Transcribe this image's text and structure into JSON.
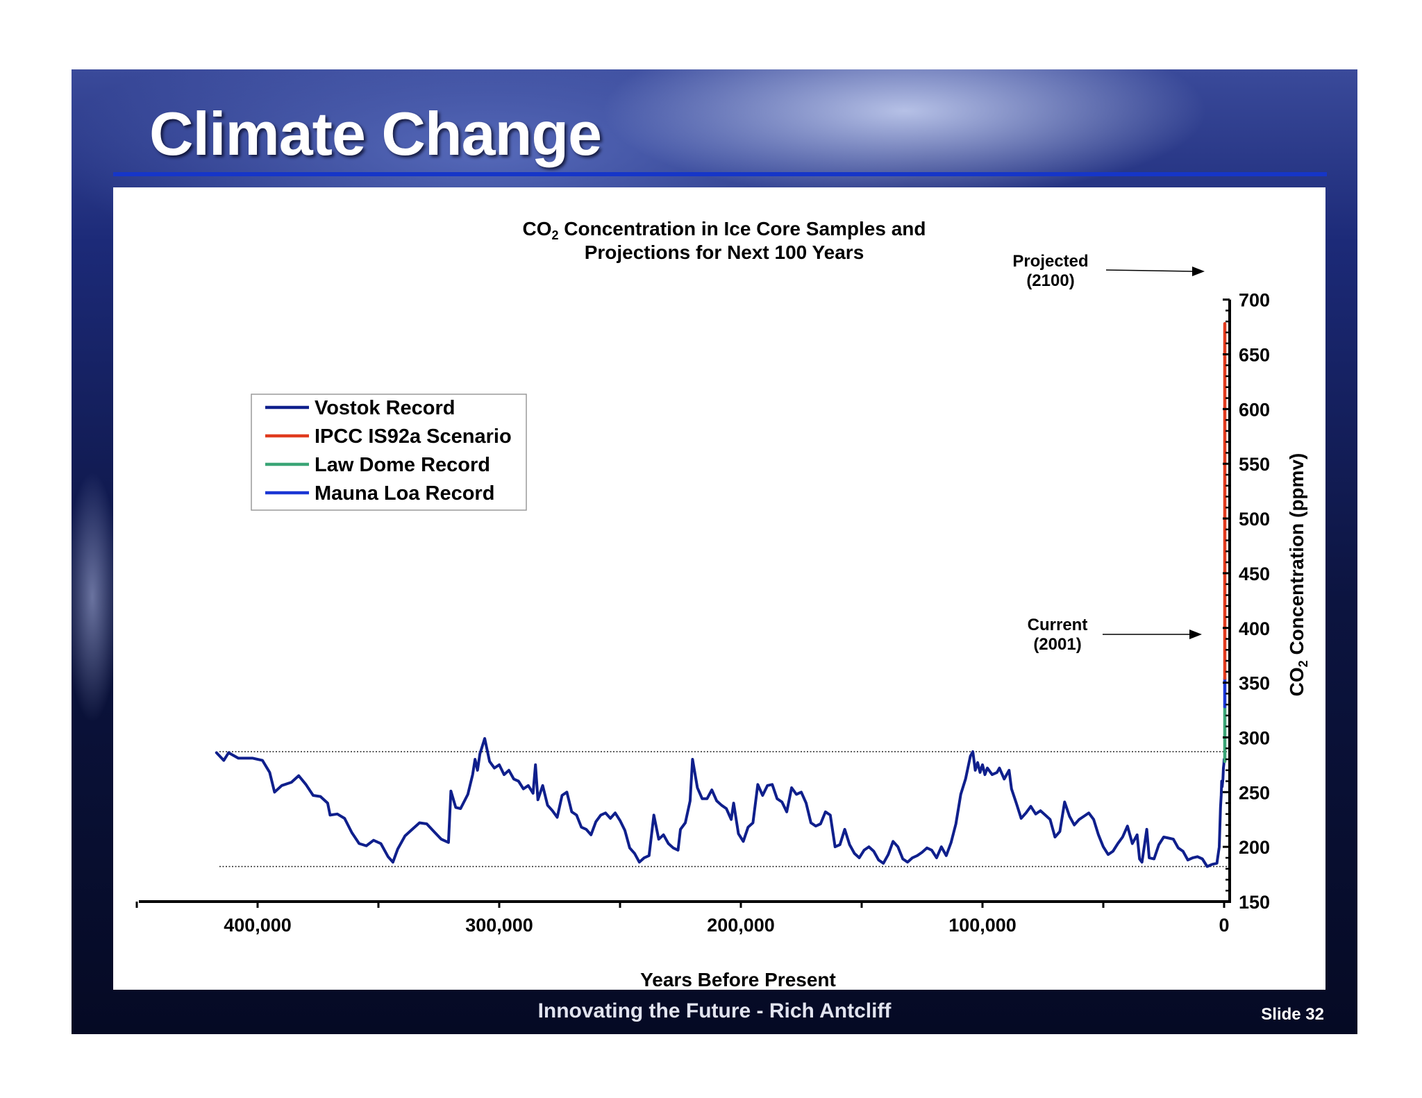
{
  "slide": {
    "title": "Climate Change",
    "footer": "Innovating the Future - Rich Antcliff",
    "slide_number": "Slide 32"
  },
  "chart_data": {
    "type": "line",
    "title": "CO2 Concentration in Ice Core Samples and Projections for Next 100 Years",
    "title_parts": {
      "line1_pre": "CO",
      "line1_sub": "2",
      "line1_post": " Concentration in Ice Core Samples and",
      "line2": "Projections for Next 100 Years"
    },
    "xlabel": "Years Before Present",
    "ylabel": "CO2 Concentration (ppmv)",
    "ylabel_parts": {
      "pre": "CO",
      "sub": "2",
      "post": " Concentration (ppmv)"
    },
    "xlim": [
      450000,
      0
    ],
    "ylim": [
      150,
      700
    ],
    "x_ticks": [
      400000,
      300000,
      200000,
      100000,
      0
    ],
    "x_tick_labels": [
      "400,000",
      "300,000",
      "200,000",
      "100,000",
      "0"
    ],
    "y_ticks": [
      150,
      200,
      250,
      300,
      350,
      400,
      450,
      500,
      550,
      600,
      650,
      700
    ],
    "y_tick_labels": [
      "150",
      "200",
      "250",
      "300",
      "350",
      "400",
      "450",
      "500",
      "550",
      "600",
      "650",
      "700"
    ],
    "y_axis_side": "right",
    "grid": false,
    "reference_lines": [
      {
        "y": 287,
        "style": "dotted"
      },
      {
        "y": 182,
        "style": "dotted"
      }
    ],
    "legend": {
      "placement": "upper-left"
    },
    "annotations": [
      {
        "lines": [
          "Projected",
          "(2100)"
        ],
        "target_y": 678
      },
      {
        "lines": [
          "Current",
          "(2001)"
        ],
        "target_y": 372
      }
    ],
    "series": [
      {
        "name": "Vostok Record",
        "color": "#0f1f8c",
        "points": [
          [
            417000,
            286
          ],
          [
            414000,
            279
          ],
          [
            412000,
            286
          ],
          [
            408000,
            281
          ],
          [
            402000,
            281
          ],
          [
            398000,
            279
          ],
          [
            395000,
            268
          ],
          [
            393000,
            250
          ],
          [
            390000,
            256
          ],
          [
            386000,
            259
          ],
          [
            383000,
            265
          ],
          [
            380000,
            257
          ],
          [
            377000,
            247
          ],
          [
            374000,
            246
          ],
          [
            371000,
            240
          ],
          [
            370000,
            229
          ],
          [
            367000,
            230
          ],
          [
            364000,
            226
          ],
          [
            361000,
            213
          ],
          [
            358000,
            203
          ],
          [
            355000,
            201
          ],
          [
            352000,
            206
          ],
          [
            349000,
            203
          ],
          [
            346000,
            191
          ],
          [
            344000,
            186
          ],
          [
            342000,
            198
          ],
          [
            339000,
            210
          ],
          [
            336000,
            216
          ],
          [
            333000,
            222
          ],
          [
            330000,
            221
          ],
          [
            327000,
            214
          ],
          [
            324000,
            207
          ],
          [
            321000,
            204
          ],
          [
            320000,
            251
          ],
          [
            318000,
            236
          ],
          [
            316000,
            235
          ],
          [
            313000,
            248
          ],
          [
            311000,
            266
          ],
          [
            310000,
            280
          ],
          [
            309000,
            270
          ],
          [
            308000,
            285
          ],
          [
            306000,
            299
          ],
          [
            304000,
            278
          ],
          [
            302000,
            272
          ],
          [
            300000,
            275
          ],
          [
            298000,
            266
          ],
          [
            296000,
            270
          ],
          [
            294000,
            262
          ],
          [
            292000,
            260
          ],
          [
            290000,
            253
          ],
          [
            288000,
            256
          ],
          [
            286000,
            249
          ],
          [
            285000,
            275
          ],
          [
            284000,
            243
          ],
          [
            282000,
            256
          ],
          [
            280000,
            238
          ],
          [
            278000,
            233
          ],
          [
            276000,
            227
          ],
          [
            274000,
            247
          ],
          [
            272000,
            250
          ],
          [
            270000,
            232
          ],
          [
            268000,
            229
          ],
          [
            266000,
            218
          ],
          [
            264000,
            216
          ],
          [
            262000,
            211
          ],
          [
            260000,
            223
          ],
          [
            258000,
            229
          ],
          [
            256000,
            231
          ],
          [
            254000,
            226
          ],
          [
            252000,
            231
          ],
          [
            250000,
            224
          ],
          [
            248000,
            215
          ],
          [
            246000,
            199
          ],
          [
            244000,
            194
          ],
          [
            242000,
            186
          ],
          [
            240000,
            190
          ],
          [
            238000,
            192
          ],
          [
            236000,
            229
          ],
          [
            234000,
            207
          ],
          [
            232000,
            211
          ],
          [
            230000,
            203
          ],
          [
            228000,
            199
          ],
          [
            226000,
            197
          ],
          [
            225000,
            216
          ],
          [
            223000,
            222
          ],
          [
            221000,
            242
          ],
          [
            220000,
            280
          ],
          [
            218000,
            254
          ],
          [
            216000,
            244
          ],
          [
            214000,
            244
          ],
          [
            212000,
            252
          ],
          [
            210000,
            242
          ],
          [
            208000,
            238
          ],
          [
            206000,
            235
          ],
          [
            204000,
            225
          ],
          [
            203000,
            240
          ],
          [
            201000,
            212
          ],
          [
            199000,
            205
          ],
          [
            197000,
            218
          ],
          [
            195000,
            222
          ],
          [
            193000,
            257
          ],
          [
            191000,
            247
          ],
          [
            189000,
            256
          ],
          [
            187000,
            257
          ],
          [
            185000,
            244
          ],
          [
            183000,
            241
          ],
          [
            181000,
            232
          ],
          [
            179000,
            254
          ],
          [
            177000,
            248
          ],
          [
            175000,
            250
          ],
          [
            173000,
            240
          ],
          [
            171000,
            222
          ],
          [
            169000,
            219
          ],
          [
            167000,
            221
          ],
          [
            165000,
            232
          ],
          [
            163000,
            229
          ],
          [
            161000,
            200
          ],
          [
            159000,
            202
          ],
          [
            157000,
            216
          ],
          [
            155000,
            202
          ],
          [
            153000,
            194
          ],
          [
            151000,
            190
          ],
          [
            149000,
            197
          ],
          [
            147000,
            200
          ],
          [
            145000,
            196
          ],
          [
            143000,
            188
          ],
          [
            141000,
            185
          ],
          [
            139000,
            193
          ],
          [
            137000,
            205
          ],
          [
            135000,
            200
          ],
          [
            133000,
            189
          ],
          [
            131000,
            186
          ],
          [
            129000,
            190
          ],
          [
            127000,
            192
          ],
          [
            125000,
            195
          ],
          [
            123000,
            199
          ],
          [
            121000,
            197
          ],
          [
            119000,
            190
          ],
          [
            117000,
            200
          ],
          [
            115000,
            192
          ],
          [
            113000,
            204
          ],
          [
            111000,
            221
          ],
          [
            109000,
            248
          ],
          [
            107000,
            262
          ],
          [
            105000,
            283
          ],
          [
            104000,
            287
          ],
          [
            103000,
            270
          ],
          [
            102000,
            277
          ],
          [
            101000,
            268
          ],
          [
            100000,
            275
          ],
          [
            99000,
            266
          ],
          [
            98000,
            272
          ],
          [
            96000,
            266
          ],
          [
            94000,
            268
          ],
          [
            93000,
            272
          ],
          [
            91000,
            262
          ],
          [
            89000,
            270
          ],
          [
            88000,
            253
          ],
          [
            86000,
            240
          ],
          [
            84000,
            226
          ],
          [
            82000,
            231
          ],
          [
            80000,
            237
          ],
          [
            78000,
            230
          ],
          [
            76000,
            233
          ],
          [
            74000,
            229
          ],
          [
            72000,
            225
          ],
          [
            70000,
            209
          ],
          [
            68000,
            214
          ],
          [
            66000,
            241
          ],
          [
            64000,
            228
          ],
          [
            62000,
            220
          ],
          [
            60000,
            225
          ],
          [
            58000,
            228
          ],
          [
            56000,
            231
          ],
          [
            54000,
            225
          ],
          [
            52000,
            211
          ],
          [
            50000,
            200
          ],
          [
            48000,
            193
          ],
          [
            46000,
            196
          ],
          [
            44000,
            203
          ],
          [
            42000,
            209
          ],
          [
            40000,
            219
          ],
          [
            38000,
            203
          ],
          [
            36000,
            211
          ],
          [
            35000,
            189
          ],
          [
            34000,
            186
          ],
          [
            32000,
            216
          ],
          [
            31000,
            190
          ],
          [
            29000,
            189
          ],
          [
            27000,
            202
          ],
          [
            25000,
            209
          ],
          [
            23000,
            208
          ],
          [
            21000,
            207
          ],
          [
            19000,
            199
          ],
          [
            17000,
            196
          ],
          [
            15000,
            188
          ],
          [
            13000,
            190
          ],
          [
            11000,
            191
          ],
          [
            9000,
            189
          ],
          [
            7000,
            182
          ],
          [
            5000,
            184
          ],
          [
            3000,
            185
          ],
          [
            2000,
            200
          ],
          [
            1500,
            236
          ],
          [
            1200,
            247
          ],
          [
            1000,
            260
          ],
          [
            800,
            255
          ],
          [
            500,
            262
          ],
          [
            300,
            272
          ],
          [
            100,
            276
          ],
          [
            0,
            280
          ]
        ]
      },
      {
        "name": "Law Dome Record",
        "color": "#3aa576",
        "points": [
          [
            0,
            278
          ],
          [
            0,
            291
          ],
          [
            0,
            304
          ],
          [
            0,
            316
          ],
          [
            0,
            328
          ]
        ]
      },
      {
        "name": "Mauna Loa Record",
        "color": "#1a36d4",
        "points": [
          [
            0,
            328
          ],
          [
            0,
            340
          ],
          [
            0,
            354
          ]
        ]
      },
      {
        "name": "IPCC IS92a Scenario",
        "color": "#e03a1e",
        "points": [
          [
            0,
            354
          ],
          [
            0,
            450
          ],
          [
            0,
            560
          ],
          [
            0,
            678
          ]
        ]
      }
    ]
  }
}
